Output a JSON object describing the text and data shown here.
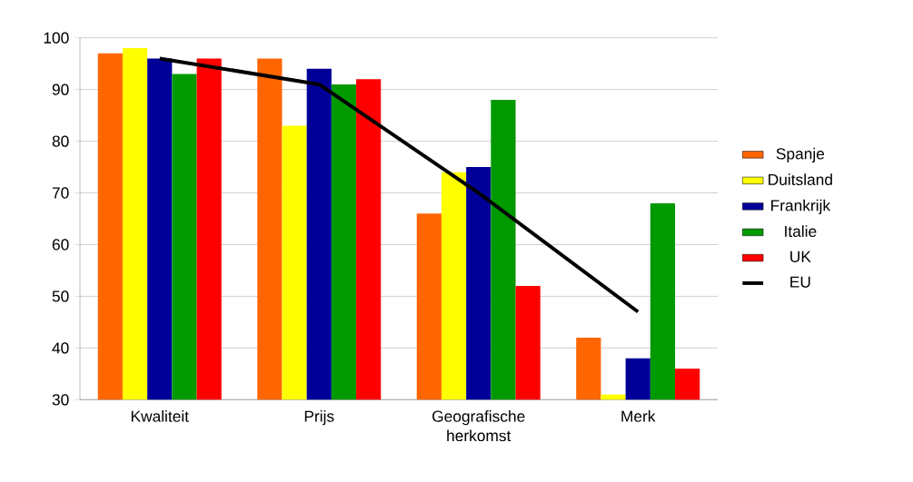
{
  "chart_data": {
    "type": "bar",
    "categories": [
      "Kwaliteit",
      "Prijs",
      "Geografische herkomst",
      "Merk"
    ],
    "series": [
      {
        "name": "Spanje",
        "color": "#ff6600",
        "values": [
          97,
          96,
          66,
          42
        ]
      },
      {
        "name": "Duitsland",
        "color": "#ffff00",
        "values": [
          98,
          83,
          74,
          31
        ]
      },
      {
        "name": "Frankrijk",
        "color": "#000099",
        "values": [
          96,
          94,
          75,
          38
        ]
      },
      {
        "name": "Italie",
        "color": "#009900",
        "values": [
          93,
          91,
          88,
          68
        ]
      },
      {
        "name": "UK",
        "color": "#ff0000",
        "values": [
          96,
          92,
          52,
          36
        ]
      },
      {
        "name": "EU",
        "type": "line",
        "color": "#000000",
        "values": [
          96,
          91,
          70,
          47
        ]
      }
    ],
    "ylim": [
      30,
      100
    ],
    "yticks": [
      30,
      40,
      50,
      60,
      70,
      80,
      90,
      100
    ],
    "grid": "y",
    "legend": "right",
    "marker": "none"
  }
}
